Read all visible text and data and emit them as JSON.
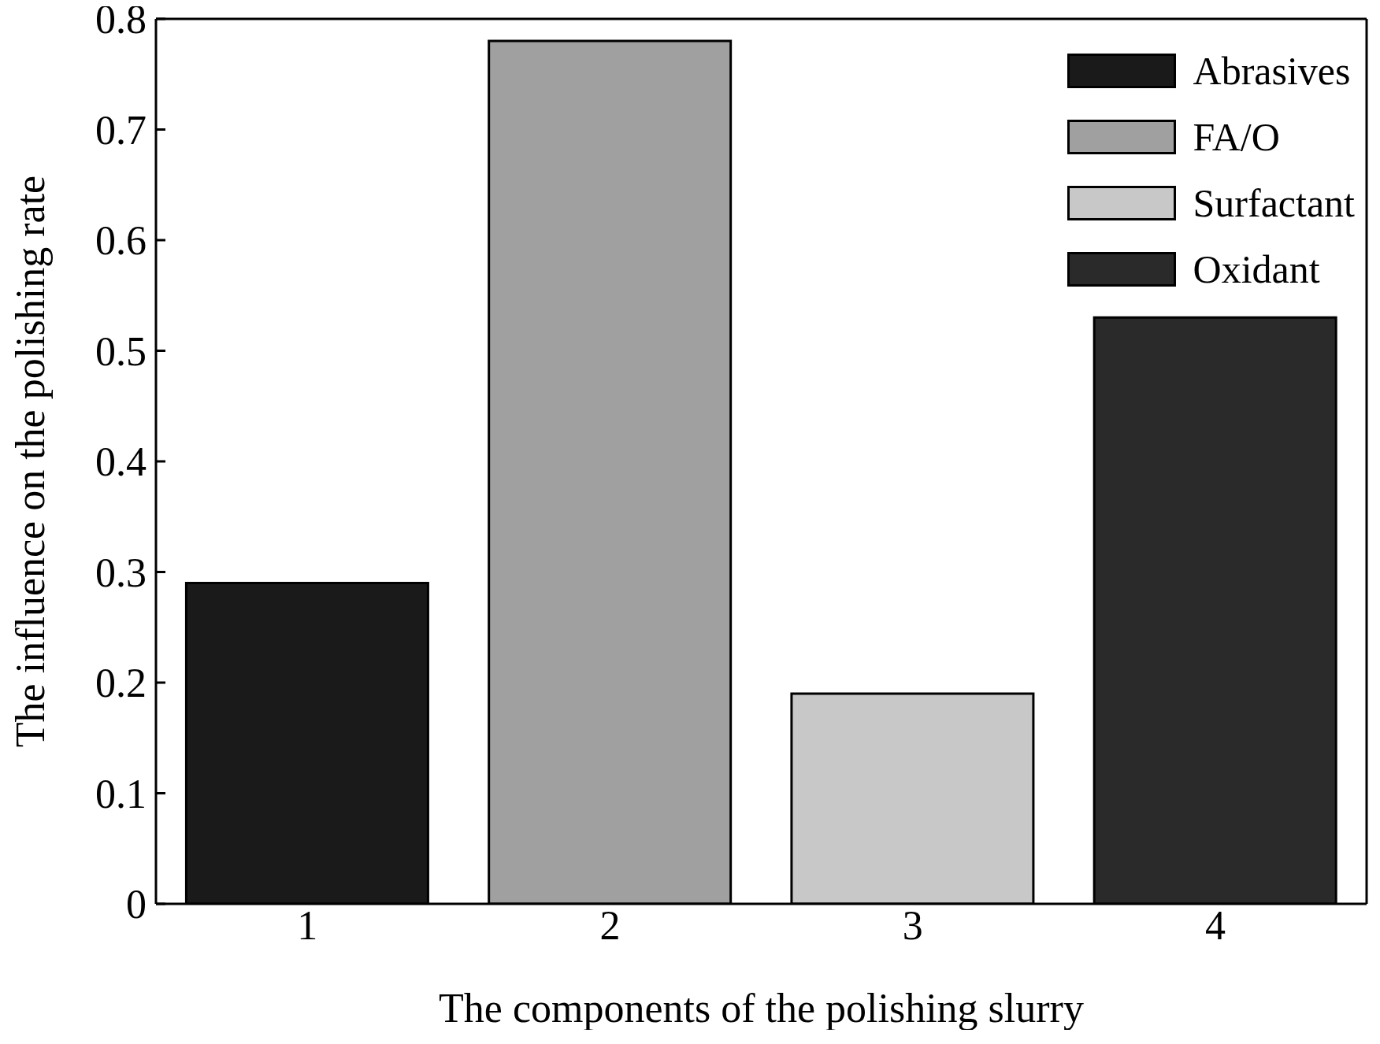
{
  "chart_data": {
    "type": "bar",
    "xlabel": "The components of the polishing slurry",
    "ylabel": "The influence on the polishing rate",
    "categories": [
      "1",
      "2",
      "3",
      "4"
    ],
    "series": [
      {
        "name": "Abrasives",
        "color": "#1a1a1a",
        "values": [
          0.29,
          null,
          null,
          null
        ]
      },
      {
        "name": "FA/O",
        "color": "#a0a0a0",
        "values": [
          null,
          0.78,
          null,
          null
        ]
      },
      {
        "name": "Surfactant",
        "color": "#c8c8c8",
        "values": [
          null,
          null,
          0.19,
          null
        ]
      },
      {
        "name": "Oxidant",
        "color": "#2a2a2a",
        "values": [
          null,
          null,
          null,
          0.53
        ]
      }
    ],
    "stacked": true,
    "ylim": [
      0,
      0.8
    ],
    "yticks": [
      0,
      0.1,
      0.2,
      0.3,
      0.4,
      0.5,
      0.6,
      0.7,
      0.8
    ],
    "grid": false,
    "legend": "top right"
  }
}
